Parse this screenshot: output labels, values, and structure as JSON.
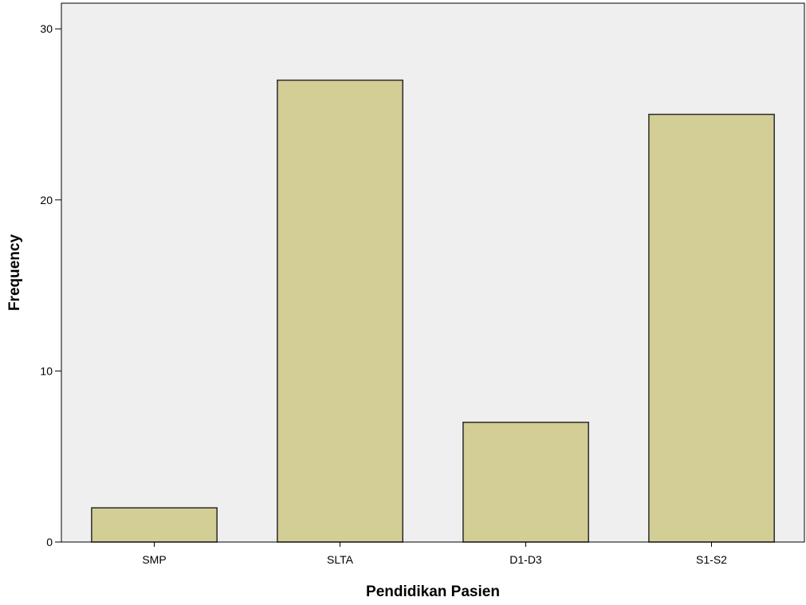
{
  "chart_data": {
    "type": "bar",
    "categories": [
      "SMP",
      "SLTA",
      "D1-D3",
      "S1-S2"
    ],
    "values": [
      2,
      27,
      7,
      25
    ],
    "xlabel": "Pendidikan Pasien",
    "ylabel": "Frequency",
    "ylim": [
      0,
      31.5
    ],
    "yticks": [
      0,
      10,
      20,
      30
    ],
    "grid": false,
    "legend": "none",
    "colors": {
      "bar_fill": "#d3cd96",
      "bar_stroke": "#2b2b2b",
      "plot_background": "#efefef",
      "axis": "#000000"
    }
  }
}
